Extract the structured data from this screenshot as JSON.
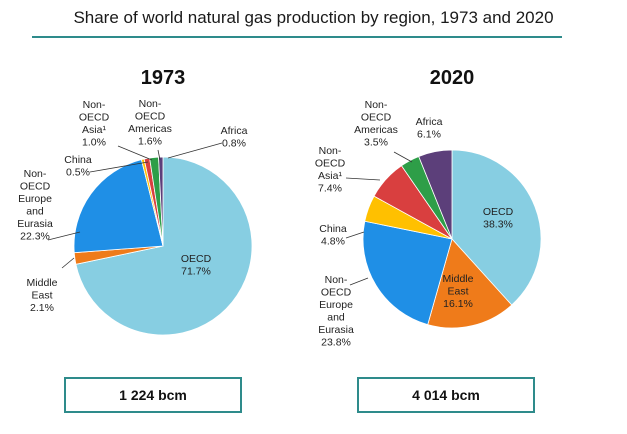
{
  "title": "Share of world natural gas production by region, 1973 and 2020",
  "colors": {
    "OECD": "#87CEE2",
    "Middle East": "#EF7B1A",
    "Non-OECD Europe and Eurasia": "#1F8FE6",
    "China": "#FFC000",
    "Non-OECD Asia": "#D93F3F",
    "Non-OECD Americas": "#2E9E48",
    "Africa": "#5C3F7A",
    "accent": "#2E8B8B"
  },
  "chart_data": [
    {
      "type": "pie",
      "title": "1973",
      "total_label": "1 224 bcm",
      "slices": [
        {
          "name": "OECD",
          "value": 71.7,
          "label": "OECD|71.7%"
        },
        {
          "name": "Middle East",
          "value": 2.1,
          "label": "Middle|East|2.1%"
        },
        {
          "name": "Non-OECD Europe and Eurasia",
          "value": 22.3,
          "label": "Non-|OECD|Europe|and|Eurasia|22.3%"
        },
        {
          "name": "China",
          "value": 0.5,
          "label": "China|0.5%"
        },
        {
          "name": "Non-OECD Asia",
          "value": 1.0,
          "label": "Non-|OECD|Asia¹|1.0%"
        },
        {
          "name": "Non-OECD Americas",
          "value": 1.6,
          "label": "Non-|OECD|Americas|1.6%"
        },
        {
          "name": "Africa",
          "value": 0.8,
          "label": "Africa|0.8%"
        }
      ]
    },
    {
      "type": "pie",
      "title": "2020",
      "total_label": "4 014 bcm",
      "slices": [
        {
          "name": "OECD",
          "value": 38.3,
          "label": "OECD|38.3%"
        },
        {
          "name": "Middle East",
          "value": 16.1,
          "label": "Middle|East|16.1%"
        },
        {
          "name": "Non-OECD Europe and Eurasia",
          "value": 23.8,
          "label": "Non-|OECD|Europe|and|Eurasia|23.8%"
        },
        {
          "name": "China",
          "value": 4.8,
          "label": "China|4.8%"
        },
        {
          "name": "Non-OECD Asia",
          "value": 7.4,
          "label": "Non-|OECD|Asia¹|7.4%"
        },
        {
          "name": "Non-OECD Americas",
          "value": 3.5,
          "label": "Non-|OECD|Americas|3.5%"
        },
        {
          "name": "Africa",
          "value": 6.1,
          "label": "Africa|6.1%"
        }
      ]
    }
  ]
}
